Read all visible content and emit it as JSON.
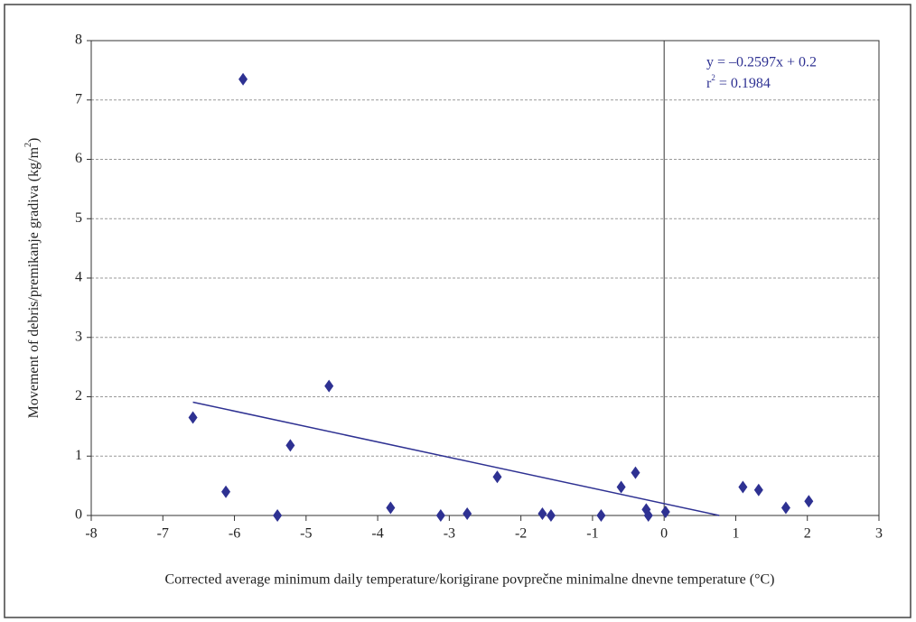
{
  "chart_data": {
    "type": "scatter",
    "x_label": "Corrected average minimum daily temperature/korigirane povprečne minimalne dnevne temperature (°C)",
    "y_label_parts": [
      "Movement of debris/premikanje gradiva (kg/m",
      "2",
      ")"
    ],
    "annotation": "y = –0.2597x + 0.2",
    "annotation_r2_parts": [
      "r",
      "2",
      " = 0.1984"
    ],
    "color": "#2e3192",
    "x": [
      -6.58,
      -6.12,
      -5.88,
      -5.4,
      -5.22,
      -4.68,
      -3.82,
      -3.12,
      -2.75,
      -2.33,
      -1.7,
      -1.58,
      -0.88,
      -0.6,
      -0.4,
      -0.25,
      -0.22,
      0.02,
      1.1,
      1.32,
      1.7,
      2.02
    ],
    "values": [
      1.65,
      0.4,
      7.35,
      0,
      1.18,
      2.18,
      0.13,
      0,
      0.03,
      0.65,
      0.03,
      0,
      0,
      0.48,
      0.72,
      0.1,
      0,
      0.06,
      0.48,
      0.43,
      0.13,
      0.24
    ],
    "trendline": {
      "x": [
        -6.58,
        0.77
      ],
      "y": [
        1.909,
        0
      ],
      "color": "#2e3192"
    },
    "xlim": [
      -8,
      3
    ],
    "xticks": [
      -8,
      -7,
      -6,
      -5,
      -4,
      -3,
      -2,
      -1,
      0,
      1,
      2,
      3
    ],
    "ylim": [
      0,
      8
    ],
    "yticks": [
      0,
      1,
      2,
      3,
      4,
      5,
      6,
      7,
      8
    ],
    "grid": "y",
    "zero_line": true
  }
}
